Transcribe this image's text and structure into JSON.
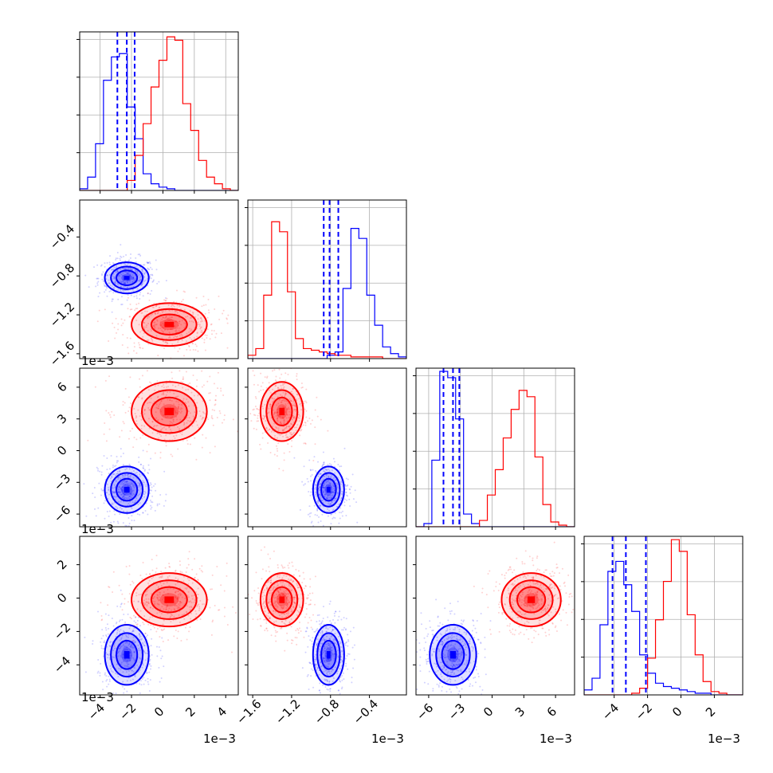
{
  "chart_data": {
    "type": "corner",
    "series": [
      {
        "name": "",
        "color": "#0000ff"
      },
      {
        "name": "",
        "color": "#ff0000"
      }
    ],
    "grid": true,
    "offset_text": "1e−3",
    "variables": [
      {
        "range": [
          -0.0053,
          0.0048
        ],
        "ticks": [
          -0.004,
          -0.002,
          0,
          0.002,
          0.004
        ],
        "tick_labels": [
          "−4",
          "−2",
          "0",
          "2",
          "4"
        ],
        "quantiles": [
          -0.0029,
          -0.0023,
          -0.0018
        ],
        "hist": [
          {
            "series": 0,
            "counts": [
              0.01,
              0.08,
              0.28,
              0.66,
              0.8,
              0.82,
              0.5,
              0.31,
              0.1,
              0.04,
              0.02,
              0.01,
              0,
              0,
              0,
              0,
              0,
              0,
              0,
              0
            ]
          },
          {
            "series": 1,
            "counts": [
              0,
              0,
              0,
              0,
              0,
              0,
              0.06,
              0.21,
              0.4,
              0.62,
              0.78,
              0.92,
              0.9,
              0.52,
              0.36,
              0.18,
              0.08,
              0.04,
              0.01,
              0
            ]
          }
        ],
        "hist_ymax": 0.95
      },
      {
        "range": [
          -0.00165,
          -2e-05
        ],
        "ticks": [
          -0.0016,
          -0.0012,
          -0.0008,
          -0.0004
        ],
        "tick_labels": [
          "−1.6",
          "−1.2",
          "−0.8",
          "−0.4"
        ],
        "quantiles": [
          -0.00087,
          -0.00081,
          -0.00072
        ],
        "hist": [
          {
            "series": 0,
            "counts": [
              0,
              0,
              0,
              0,
              0,
              0,
              0,
              0,
              0,
              0,
              0.02,
              0.04,
              0.42,
              0.78,
              0.72,
              0.38,
              0.2,
              0.07,
              0.03,
              0.01
            ]
          },
          {
            "series": 1,
            "counts": [
              0.02,
              0.06,
              0.38,
              0.82,
              0.76,
              0.4,
              0.12,
              0.06,
              0.05,
              0.04,
              0.03,
              0.02,
              0.02,
              0.01,
              0.01,
              0.01,
              0.01,
              0,
              0,
              0
            ]
          }
        ],
        "hist_ymax": 0.95
      },
      {
        "range": [
          -0.0072,
          0.0078
        ],
        "ticks": [
          -0.006,
          -0.003,
          0,
          0.003,
          0.006
        ],
        "tick_labels": [
          "−6",
          "−3",
          "0",
          "3",
          "6"
        ],
        "quantiles": [
          -0.0046,
          -0.0037,
          -0.0031
        ],
        "hist": [
          {
            "series": 0,
            "counts": [
              0,
              0.02,
              0.42,
              0.98,
              0.94,
              0.68,
              0.08,
              0.02,
              0,
              0,
              0,
              0,
              0,
              0,
              0,
              0,
              0,
              0,
              0,
              0
            ]
          },
          {
            "series": 1,
            "counts": [
              0,
              0,
              0,
              0,
              0,
              0,
              0,
              0,
              0.04,
              0.2,
              0.36,
              0.56,
              0.74,
              0.86,
              0.82,
              0.44,
              0.14,
              0.03,
              0.01,
              0
            ]
          },
          {
            "series": 1,
            "counts": []
          }
        ],
        "hist_ymax": 1.0
      },
      {
        "range": [
          -0.0058,
          0.0037
        ],
        "ticks": [
          -0.004,
          -0.002,
          0,
          0.002
        ],
        "tick_labels": [
          "−4",
          "−2",
          "0",
          "2"
        ],
        "quantiles": [
          -0.0041,
          -0.0033,
          -0.0021
        ],
        "hist": [
          {
            "series": 0,
            "counts": [
              0.03,
              0.1,
              0.42,
              0.74,
              0.8,
              0.66,
              0.5,
              0.24,
              0.13,
              0.07,
              0.05,
              0.04,
              0.03,
              0.02,
              0.01,
              0.01,
              0,
              0,
              0,
              0
            ]
          },
          {
            "series": 1,
            "counts": [
              0,
              0,
              0,
              0,
              0,
              0,
              0.01,
              0.04,
              0.22,
              0.45,
              0.68,
              0.93,
              0.86,
              0.48,
              0.24,
              0.08,
              0.02,
              0.01,
              0,
              0
            ]
          }
        ],
        "hist_ymax": 0.95
      }
    ],
    "clusters": [
      {
        "series": 0,
        "center": [
          -0.0023,
          -0.00082,
          -0.0037,
          -0.0034
        ],
        "sd": [
          0.0007,
          8e-05,
          0.0011,
          0.0009
        ]
      },
      {
        "series": 1,
        "center": [
          0.0004,
          -0.0013,
          0.0037,
          -0.0001
        ],
        "sd": [
          0.0012,
          0.00011,
          0.0014,
          0.0008
        ]
      }
    ]
  }
}
